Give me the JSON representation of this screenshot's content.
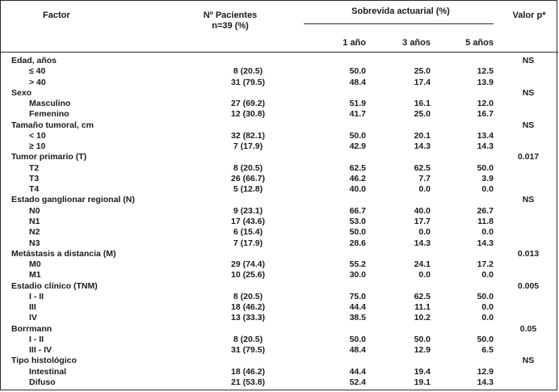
{
  "header": {
    "factor": "Factor",
    "patients_line1": "Nº Pacientes",
    "patients_line2": "n=39 (%)",
    "survival": "Sobrevida actuarial (%)",
    "year1": "1 año",
    "year3": "3 años",
    "year5": "5 años",
    "pvalue": "Valor p*"
  },
  "rows": [
    {
      "kind": "group",
      "label": "Edad, años",
      "p": "NS"
    },
    {
      "kind": "sub",
      "label": "≤ 40",
      "patients": "8 (20.5)",
      "y1": "50.0",
      "y3": "25.0",
      "y5": "12.5"
    },
    {
      "kind": "sub",
      "label": "> 40",
      "patients": "31 (79.5)",
      "y1": "48.4",
      "y3": "17.4",
      "y5": "13.9"
    },
    {
      "kind": "group",
      "label": "Sexo",
      "p": "NS"
    },
    {
      "kind": "sub",
      "label": "Masculino",
      "patients": "27 (69.2)",
      "y1": "51.9",
      "y3": "16.1",
      "y5": "12.0"
    },
    {
      "kind": "sub",
      "label": "Femenino",
      "patients": "12 (30.8)",
      "y1": "41.7",
      "y3": "25.0",
      "y5": "16.7"
    },
    {
      "kind": "group",
      "label": "Tamaño tumoral, cm",
      "p": "NS"
    },
    {
      "kind": "sub",
      "label": "< 10",
      "patients": "32 (82.1)",
      "y1": "50.0",
      "y3": "20.1",
      "y5": "13.4"
    },
    {
      "kind": "sub",
      "label": "≥ 10",
      "patients": "7 (17.9)",
      "y1": "42.9",
      "y3": "14.3",
      "y5": "14.3"
    },
    {
      "kind": "group",
      "label": "Tumor primario (T)",
      "p": "0.017"
    },
    {
      "kind": "sub",
      "label": "T2",
      "patients": "8 (20.5)",
      "y1": "62.5",
      "y3": "62.5",
      "y5": "50.0"
    },
    {
      "kind": "sub",
      "label": "T3",
      "patients": "26 (66.7)",
      "y1": "46.2",
      "y3": "7.7",
      "y5": "3.9"
    },
    {
      "kind": "sub",
      "label": "T4",
      "patients": "5 (12.8)",
      "y1": "40.0",
      "y3": "0.0",
      "y5": "0.0"
    },
    {
      "kind": "group",
      "label": "Estado ganglionar regional (N)",
      "p": "NS"
    },
    {
      "kind": "sub",
      "label": "N0",
      "patients": "9 (23.1)",
      "y1": "66.7",
      "y3": "40.0",
      "y5": "26.7"
    },
    {
      "kind": "sub",
      "label": "N1",
      "patients": "17 (43.6)",
      "y1": "53.0",
      "y3": "17.7",
      "y5": "11.8"
    },
    {
      "kind": "sub",
      "label": "N2",
      "patients": "6 (15.4)",
      "y1": "50.0",
      "y3": "0.0",
      "y5": "0.0"
    },
    {
      "kind": "sub",
      "label": "N3",
      "patients": "7 (17.9)",
      "y1": "28.6",
      "y3": "14.3",
      "y5": "14.3"
    },
    {
      "kind": "group",
      "label": "Metástasis a distancia (M)",
      "p": "0.013"
    },
    {
      "kind": "sub",
      "label": "M0",
      "patients": "29 (74.4)",
      "y1": "55.2",
      "y3": "24.1",
      "y5": "17.2"
    },
    {
      "kind": "sub",
      "label": "M1",
      "patients": "10 (25.6)",
      "y1": "30.0",
      "y3": "0.0",
      "y5": "0.0"
    },
    {
      "kind": "group",
      "label": "Estadio clínico (TNM)",
      "p": "0.005"
    },
    {
      "kind": "sub",
      "label": "I - II",
      "patients": "8 (20.5)",
      "y1": "75.0",
      "y3": "62.5",
      "y5": "50.0"
    },
    {
      "kind": "sub",
      "label": "III",
      "patients": "18 (46.2)",
      "y1": "44.4",
      "y3": "11.1",
      "y5": "0.0"
    },
    {
      "kind": "sub",
      "label": "IV",
      "patients": "13 (33.3)",
      "y1": "38.5",
      "y3": "10.2",
      "y5": "0.0"
    },
    {
      "kind": "group",
      "label": "Borrmann",
      "p": "0.05"
    },
    {
      "kind": "sub",
      "label": "I - II",
      "patients": "8 (20.5)",
      "y1": "50.0",
      "y3": "50.0",
      "y5": "50.0"
    },
    {
      "kind": "sub",
      "label": "III - IV",
      "patients": "31 (79.5)",
      "y1": "48.4",
      "y3": "12.9",
      "y5": "6.5"
    },
    {
      "kind": "group",
      "label": "Tipo histológico",
      "p": "NS"
    },
    {
      "kind": "sub",
      "label": "Intestinal",
      "patients": "18 (46.2)",
      "y1": "44.4",
      "y3": "19.4",
      "y5": "12.9"
    },
    {
      "kind": "sub",
      "label": "Difuso",
      "patients": "21 (53.8)",
      "y1": "52.4",
      "y3": "19.1",
      "y5": "14.3"
    }
  ]
}
